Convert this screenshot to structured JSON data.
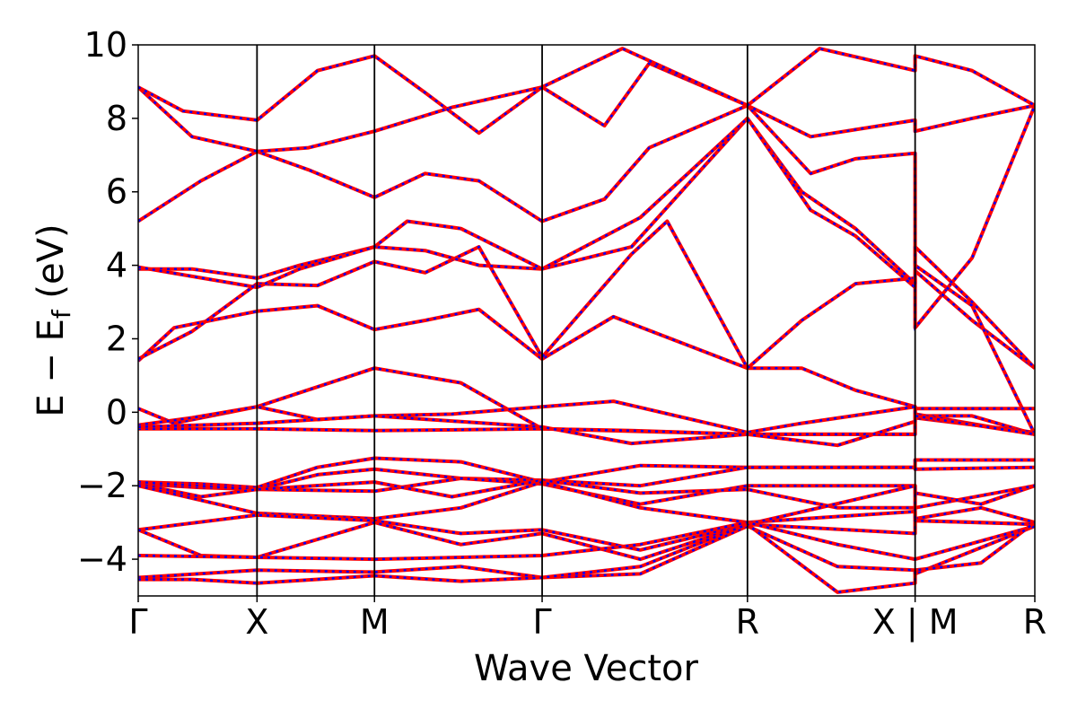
{
  "chart_data": {
    "type": "line",
    "title": "",
    "xlabel": "Wave Vector",
    "ylabel_main": "E − E",
    "ylabel_sub": "f",
    "ylabel_tail": " (eV)",
    "ylim": [
      -5,
      10
    ],
    "yticks": [
      {
        "value": 10,
        "label": "10"
      },
      {
        "value": 8,
        "label": "8"
      },
      {
        "value": 6,
        "label": "6"
      },
      {
        "value": 4,
        "label": "4"
      },
      {
        "value": 2,
        "label": "2"
      },
      {
        "value": 0,
        "label": "0"
      },
      {
        "value": -2,
        "label": "−2"
      },
      {
        "value": -4,
        "label": "−4"
      }
    ],
    "kpath": {
      "total": 1,
      "points": [
        {
          "k": 0.0,
          "label": "Γ"
        },
        {
          "k": 0.1325,
          "label": "X"
        },
        {
          "k": 0.2635,
          "label": "M"
        },
        {
          "k": 0.4505,
          "label": "Γ"
        },
        {
          "k": 0.6795,
          "label": "R"
        },
        {
          "k": 0.8665,
          "label": "X | M"
        },
        {
          "k": 1.0,
          "label": "R"
        }
      ]
    },
    "series_style": {
      "primary_color": "#ff0000",
      "overlay_color": "#0000ff",
      "overlay_dashed": true
    },
    "bands": [
      [
        [
          0,
          1.4
        ],
        [
          0.04,
          2.3
        ],
        [
          0.1325,
          2.75
        ],
        [
          0.2,
          2.9
        ],
        [
          0.2635,
          2.25
        ],
        [
          0.32,
          2.5
        ],
        [
          0.38,
          2.8
        ],
        [
          0.4505,
          1.45
        ],
        [
          0.53,
          2.6
        ],
        [
          0.6795,
          1.2
        ],
        [
          0.74,
          1.2
        ],
        [
          0.8,
          0.6
        ],
        [
          0.8665,
          0.15
        ],
        [
          0.8665,
          -0.1
        ],
        [
          0.93,
          -0.1
        ],
        [
          1.0,
          -0.6
        ]
      ],
      [
        [
          0,
          1.45
        ],
        [
          0.06,
          2.2
        ],
        [
          0.1325,
          3.5
        ],
        [
          0.2,
          3.45
        ],
        [
          0.2635,
          4.1
        ],
        [
          0.32,
          3.8
        ],
        [
          0.38,
          4.5
        ],
        [
          0.4505,
          1.5
        ],
        [
          0.55,
          4.3
        ],
        [
          0.59,
          5.2
        ],
        [
          0.6795,
          1.2
        ],
        [
          0.74,
          2.5
        ],
        [
          0.8,
          3.5
        ],
        [
          0.8665,
          3.65
        ],
        [
          0.8665,
          2.3
        ],
        [
          0.93,
          4.2
        ],
        [
          1.0,
          8.35
        ]
      ],
      [
        [
          0,
          3.9
        ],
        [
          0.06,
          3.9
        ],
        [
          0.1325,
          3.65
        ],
        [
          0.18,
          4.0
        ],
        [
          0.2635,
          4.5
        ],
        [
          0.32,
          4.4
        ],
        [
          0.38,
          4.0
        ],
        [
          0.4505,
          3.9
        ],
        [
          0.55,
          4.5
        ],
        [
          0.6795,
          8.0
        ],
        [
          0.74,
          6.0
        ],
        [
          0.8,
          5.0
        ],
        [
          0.8665,
          3.5
        ],
        [
          0.8665,
          3.85
        ],
        [
          0.93,
          2.5
        ],
        [
          1.0,
          1.2
        ]
      ],
      [
        [
          0,
          3.95
        ],
        [
          0.06,
          3.7
        ],
        [
          0.1325,
          3.4
        ],
        [
          0.18,
          3.9
        ],
        [
          0.2635,
          4.5
        ],
        [
          0.3,
          5.2
        ],
        [
          0.36,
          5.0
        ],
        [
          0.4505,
          3.9
        ],
        [
          0.56,
          5.3
        ],
        [
          0.6795,
          8.0
        ],
        [
          0.75,
          5.5
        ],
        [
          0.8,
          4.8
        ],
        [
          0.8665,
          3.4
        ],
        [
          0.8665,
          4.5
        ],
        [
          0.93,
          3.0
        ],
        [
          1.0,
          1.2
        ]
      ],
      [
        [
          0,
          5.2
        ],
        [
          0.07,
          6.3
        ],
        [
          0.1325,
          7.1
        ],
        [
          0.19,
          6.6
        ],
        [
          0.2635,
          5.85
        ],
        [
          0.32,
          6.5
        ],
        [
          0.38,
          6.3
        ],
        [
          0.4505,
          5.2
        ],
        [
          0.52,
          5.8
        ],
        [
          0.57,
          7.2
        ],
        [
          0.6795,
          8.35
        ],
        [
          0.75,
          6.5
        ],
        [
          0.8,
          6.9
        ],
        [
          0.8665,
          7.05
        ],
        [
          0.8665,
          4.0
        ],
        [
          0.93,
          2.9
        ],
        [
          1.0,
          -0.6
        ]
      ],
      [
        [
          0,
          8.85
        ],
        [
          0.06,
          7.5
        ],
        [
          0.1325,
          7.1
        ],
        [
          0.19,
          7.2
        ],
        [
          0.2635,
          7.65
        ],
        [
          0.35,
          8.3
        ],
        [
          0.4505,
          8.85
        ],
        [
          0.52,
          7.8
        ],
        [
          0.57,
          9.5
        ],
        [
          0.6795,
          8.35
        ],
        [
          0.75,
          7.5
        ],
        [
          0.8665,
          7.95
        ],
        [
          0.8665,
          7.65
        ],
        [
          0.93,
          8.0
        ],
        [
          1.0,
          8.35
        ]
      ],
      [
        [
          0,
          8.85
        ],
        [
          0.05,
          8.2
        ],
        [
          0.1325,
          7.95
        ],
        [
          0.2,
          9.3
        ],
        [
          0.2635,
          9.7
        ],
        [
          0.32,
          8.7
        ],
        [
          0.38,
          7.6
        ],
        [
          0.4505,
          8.85
        ],
        [
          0.54,
          9.9
        ],
        [
          0.6795,
          8.35
        ],
        [
          0.76,
          9.9
        ],
        [
          0.8665,
          9.3
        ],
        [
          0.8665,
          9.7
        ],
        [
          0.93,
          9.3
        ],
        [
          1.0,
          8.35
        ]
      ],
      [
        [
          0,
          0.1
        ],
        [
          0.04,
          -0.3
        ],
        [
          0.1325,
          0.15
        ],
        [
          0.2635,
          1.2
        ],
        [
          0.36,
          0.8
        ],
        [
          0.4505,
          -0.45
        ],
        [
          0.6795,
          -0.6
        ],
        [
          0.8665,
          -0.6
        ],
        [
          0.8665,
          0.1
        ],
        [
          1.0,
          0.1
        ]
      ],
      [
        [
          0,
          -0.35
        ],
        [
          0.06,
          -0.15
        ],
        [
          0.1325,
          0.15
        ],
        [
          0.2,
          -0.2
        ],
        [
          0.2635,
          -0.1
        ],
        [
          0.35,
          -0.05
        ],
        [
          0.4505,
          0.15
        ],
        [
          0.53,
          0.3
        ],
        [
          0.6795,
          -0.55
        ],
        [
          0.74,
          -0.3
        ],
        [
          0.8665,
          0.15
        ],
        [
          0.8665,
          -0.05
        ],
        [
          1.0,
          -0.6
        ]
      ],
      [
        [
          0,
          -0.45
        ],
        [
          0.1325,
          -0.45
        ],
        [
          0.2635,
          -0.5
        ],
        [
          0.4505,
          -0.45
        ],
        [
          0.55,
          -0.5
        ],
        [
          0.6795,
          -0.6
        ],
        [
          0.8665,
          -0.6
        ],
        [
          0.8665,
          -0.15
        ],
        [
          1.0,
          -0.55
        ]
      ],
      [
        [
          0,
          -0.4
        ],
        [
          0.1325,
          -0.3
        ],
        [
          0.2635,
          -0.1
        ],
        [
          0.4505,
          -0.4
        ],
        [
          0.55,
          -0.85
        ],
        [
          0.6795,
          -0.6
        ],
        [
          0.78,
          -0.9
        ],
        [
          0.8665,
          -0.25
        ],
        [
          0.8665,
          -0.1
        ],
        [
          1.0,
          -0.6
        ]
      ],
      [
        [
          0,
          -1.9
        ],
        [
          0.07,
          -1.95
        ],
        [
          0.1325,
          -2.05
        ],
        [
          0.2,
          -1.5
        ],
        [
          0.2635,
          -1.25
        ],
        [
          0.36,
          -1.35
        ],
        [
          0.4505,
          -1.9
        ],
        [
          0.56,
          -1.45
        ],
        [
          0.6795,
          -1.5
        ],
        [
          0.8665,
          -1.5
        ],
        [
          0.8665,
          -1.3
        ],
        [
          1.0,
          -1.3
        ]
      ],
      [
        [
          0,
          -1.95
        ],
        [
          0.07,
          -2.05
        ],
        [
          0.1325,
          -2.1
        ],
        [
          0.2,
          -1.7
        ],
        [
          0.2635,
          -1.55
        ],
        [
          0.36,
          -1.8
        ],
        [
          0.4505,
          -1.85
        ],
        [
          0.56,
          -2.0
        ],
        [
          0.6795,
          -1.5
        ],
        [
          0.8665,
          -1.5
        ],
        [
          0.8665,
          -1.55
        ],
        [
          1.0,
          -1.5
        ]
      ],
      [
        [
          0,
          -1.9
        ],
        [
          0.1325,
          -2.1
        ],
        [
          0.2635,
          -2.15
        ],
        [
          0.36,
          -1.8
        ],
        [
          0.4505,
          -1.95
        ],
        [
          0.56,
          -2.5
        ],
        [
          0.6795,
          -2.0
        ],
        [
          0.8665,
          -2.0
        ],
        [
          0.8665,
          -2.2
        ],
        [
          0.94,
          -2.5
        ],
        [
          1.0,
          -2.0
        ]
      ],
      [
        [
          0,
          -1.95
        ],
        [
          0.07,
          -2.3
        ],
        [
          0.1325,
          -2.1
        ],
        [
          0.2635,
          -1.9
        ],
        [
          0.35,
          -2.3
        ],
        [
          0.4505,
          -1.85
        ],
        [
          0.56,
          -2.2
        ],
        [
          0.6795,
          -2.1
        ],
        [
          0.78,
          -2.6
        ],
        [
          0.8665,
          -2.6
        ],
        [
          0.8665,
          -2.6
        ],
        [
          1.0,
          -2.0
        ]
      ],
      [
        [
          0,
          -2.0
        ],
        [
          0.1325,
          -2.75
        ],
        [
          0.2635,
          -2.9
        ],
        [
          0.36,
          -2.6
        ],
        [
          0.4505,
          -1.9
        ],
        [
          0.56,
          -2.6
        ],
        [
          0.6795,
          -3.0
        ],
        [
          0.8665,
          -2.7
        ],
        [
          0.8665,
          -2.9
        ],
        [
          0.94,
          -2.6
        ],
        [
          1.0,
          -3.0
        ]
      ],
      [
        [
          0,
          -3.2
        ],
        [
          0.1325,
          -2.8
        ],
        [
          0.2635,
          -2.95
        ],
        [
          0.36,
          -3.3
        ],
        [
          0.4505,
          -3.2
        ],
        [
          0.56,
          -3.75
        ],
        [
          0.6795,
          -3.05
        ],
        [
          0.8665,
          -2.0
        ],
        [
          0.8665,
          -2.95
        ],
        [
          0.94,
          -3.0
        ],
        [
          1.0,
          -3.05
        ]
      ],
      [
        [
          0,
          -3.2
        ],
        [
          0.07,
          -3.9
        ],
        [
          0.1325,
          -3.95
        ],
        [
          0.2635,
          -3.0
        ],
        [
          0.36,
          -3.6
        ],
        [
          0.4505,
          -3.3
        ],
        [
          0.56,
          -4.0
        ],
        [
          0.6795,
          -3.05
        ],
        [
          0.8665,
          -3.3
        ],
        [
          0.8665,
          -2.95
        ],
        [
          1.0,
          -3.05
        ]
      ],
      [
        [
          0,
          -3.9
        ],
        [
          0.1325,
          -3.95
        ],
        [
          0.2635,
          -4.0
        ],
        [
          0.36,
          -3.95
        ],
        [
          0.4505,
          -3.9
        ],
        [
          0.56,
          -3.6
        ],
        [
          0.6795,
          -3.0
        ],
        [
          0.78,
          -3.6
        ],
        [
          0.8665,
          -4.0
        ],
        [
          0.8665,
          -4.0
        ],
        [
          1.0,
          -3.1
        ]
      ],
      [
        [
          0,
          -4.5
        ],
        [
          0.1325,
          -4.3
        ],
        [
          0.2635,
          -4.35
        ],
        [
          0.36,
          -4.2
        ],
        [
          0.4505,
          -4.5
        ],
        [
          0.56,
          -4.4
        ],
        [
          0.6795,
          -3.1
        ],
        [
          0.78,
          -4.2
        ],
        [
          0.8665,
          -4.3
        ],
        [
          0.8665,
          -4.4
        ],
        [
          1.0,
          -3.1
        ]
      ],
      [
        [
          0,
          -4.55
        ],
        [
          0.06,
          -4.55
        ],
        [
          0.1325,
          -4.65
        ],
        [
          0.2635,
          -4.45
        ],
        [
          0.36,
          -4.6
        ],
        [
          0.4505,
          -4.5
        ],
        [
          0.56,
          -4.2
        ],
        [
          0.6795,
          -3.05
        ],
        [
          0.78,
          -4.9
        ],
        [
          0.8665,
          -4.65
        ],
        [
          0.8665,
          -4.3
        ],
        [
          0.94,
          -4.1
        ],
        [
          1.0,
          -3.0
        ]
      ]
    ]
  }
}
